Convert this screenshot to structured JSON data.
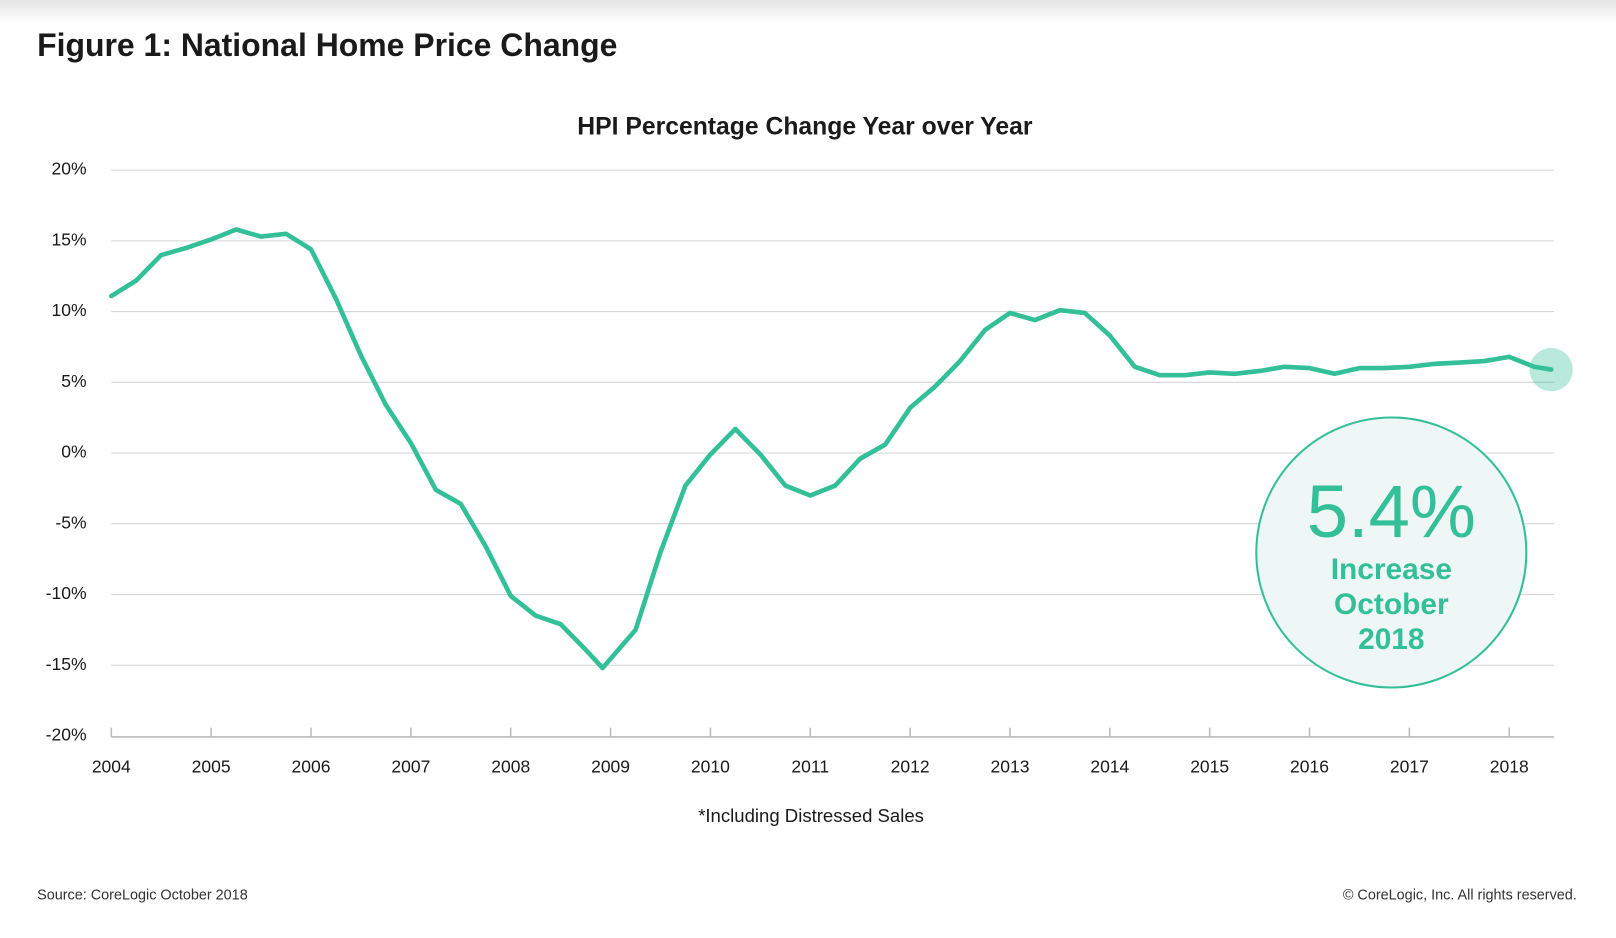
{
  "chart_data": {
    "type": "line",
    "title": "Figure 1: National Home Price Change",
    "subtitle": "HPI Percentage Change Year over Year",
    "footnote": "*Including Distressed Sales",
    "source": "Source: CoreLogic October 2018",
    "copyright": "© CoreLogic, Inc. All rights reserved.",
    "annotation": {
      "text": "5.4%",
      "lines": [
        "Increase",
        "October",
        "2018"
      ]
    },
    "color": "#33bf98",
    "x": [
      2004,
      2004.25,
      2004.5,
      2004.75,
      2005,
      2005.25,
      2005.5,
      2005.75,
      2006,
      2006.25,
      2006.5,
      2006.75,
      2007,
      2007.25,
      2007.5,
      2007.75,
      2008,
      2008.25,
      2008.5,
      2008.75,
      2008.92,
      2009.25,
      2009.5,
      2009.75,
      2010,
      2010.25,
      2010.5,
      2010.75,
      2011,
      2011.25,
      2011.5,
      2011.75,
      2012,
      2012.25,
      2012.5,
      2012.75,
      2013,
      2013.25,
      2013.5,
      2013.75,
      2014,
      2014.25,
      2014.5,
      2014.75,
      2015,
      2015.25,
      2015.5,
      2015.75,
      2016,
      2016.25,
      2016.5,
      2016.75,
      2017,
      2017.25,
      2017.5,
      2017.75,
      2018,
      2018.25,
      2018.42
    ],
    "values": [
      11.1,
      12.2,
      14.0,
      14.5,
      15.1,
      15.8,
      15.3,
      15.5,
      14.4,
      10.9,
      6.9,
      3.4,
      0.7,
      -2.6,
      -3.6,
      -6.6,
      -10.1,
      -11.5,
      -12.1,
      -13.9,
      -15.2,
      -12.5,
      -7.0,
      -2.3,
      -0.1,
      1.7,
      -0.1,
      -2.3,
      -3.0,
      -2.3,
      -0.4,
      0.6,
      3.2,
      4.7,
      6.5,
      8.7,
      9.9,
      9.4,
      10.1,
      9.9,
      8.3,
      6.1,
      5.5,
      5.5,
      5.7,
      5.6,
      5.8,
      6.1,
      6.0,
      5.6,
      6.0,
      6.0,
      6.1,
      6.3,
      6.4,
      6.5,
      6.8,
      6.1,
      5.9
    ],
    "xlim": [
      2004,
      2018.45
    ],
    "xticks": [
      2004,
      2005,
      2006,
      2007,
      2008,
      2009,
      2010,
      2011,
      2012,
      2013,
      2014,
      2015,
      2016,
      2017,
      2018
    ],
    "ylim": [
      -20,
      20
    ],
    "yticks": [
      {
        "value": -20,
        "label": "-20%"
      },
      {
        "value": -15,
        "label": "-15%"
      },
      {
        "value": -10,
        "label": "-10%"
      },
      {
        "value": -5,
        "label": "-5%"
      },
      {
        "value": 0,
        "label": "0%"
      },
      {
        "value": 5,
        "label": "5%"
      },
      {
        "value": 10,
        "label": "10%"
      },
      {
        "value": 15,
        "label": "15%"
      },
      {
        "value": 20,
        "label": "20%"
      }
    ],
    "grid": true
  }
}
